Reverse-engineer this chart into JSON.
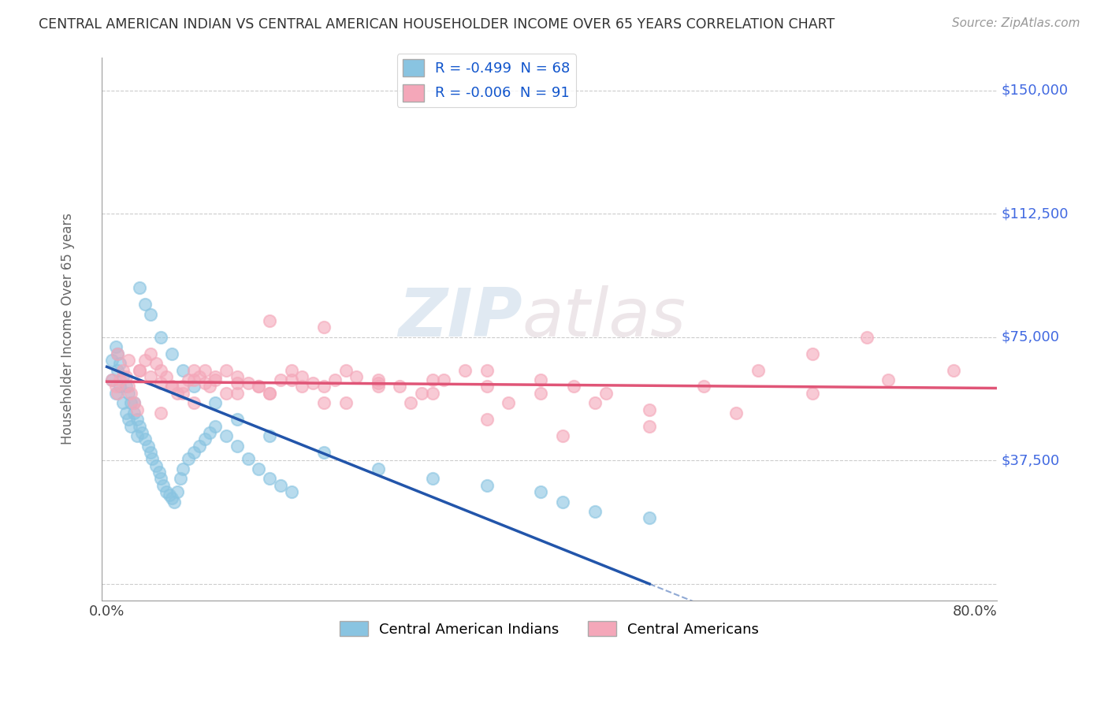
{
  "title": "CENTRAL AMERICAN INDIAN VS CENTRAL AMERICAN HOUSEHOLDER INCOME OVER 65 YEARS CORRELATION CHART",
  "source": "Source: ZipAtlas.com",
  "ylabel": "Householder Income Over 65 years",
  "xlabel": "",
  "yticks": [
    0,
    37500,
    75000,
    112500,
    150000
  ],
  "ytick_labels": [
    "",
    "$37,500",
    "$75,000",
    "$112,500",
    "$150,000"
  ],
  "xticks": [
    0.0,
    0.1,
    0.2,
    0.3,
    0.4,
    0.5,
    0.6,
    0.7,
    0.8
  ],
  "xtick_labels_show": [
    "0.0%",
    "80.0%"
  ],
  "xlim": [
    -0.005,
    0.82
  ],
  "ylim": [
    -5000,
    160000
  ],
  "watermark_zip": "ZIP",
  "watermark_atlas": "atlas",
  "legend_label1": "R = -0.499  N = 68",
  "legend_label2": "R = -0.006  N = 91",
  "legend_label3": "Central American Indians",
  "legend_label4": "Central Americans",
  "blue_color": "#89C4E1",
  "pink_color": "#F4A7B9",
  "blue_line_color": "#2255AA",
  "pink_line_color": "#E05577",
  "title_color": "#333333",
  "axis_label_color": "#666666",
  "tick_label_color": "#4169E1",
  "grid_color": "#CCCCCC",
  "background_color": "#FFFFFF",
  "blue_scatter_x": [
    0.005,
    0.008,
    0.01,
    0.012,
    0.015,
    0.018,
    0.02,
    0.022,
    0.025,
    0.028,
    0.005,
    0.008,
    0.01,
    0.012,
    0.015,
    0.018,
    0.02,
    0.022,
    0.025,
    0.028,
    0.03,
    0.032,
    0.035,
    0.038,
    0.04,
    0.042,
    0.045,
    0.048,
    0.05,
    0.052,
    0.055,
    0.058,
    0.06,
    0.062,
    0.065,
    0.068,
    0.07,
    0.075,
    0.08,
    0.085,
    0.09,
    0.095,
    0.1,
    0.11,
    0.12,
    0.13,
    0.14,
    0.15,
    0.16,
    0.17,
    0.03,
    0.035,
    0.04,
    0.05,
    0.06,
    0.07,
    0.08,
    0.1,
    0.12,
    0.15,
    0.2,
    0.25,
    0.3,
    0.35,
    0.4,
    0.42,
    0.45,
    0.5
  ],
  "blue_scatter_y": [
    62000,
    58000,
    65000,
    60000,
    55000,
    52000,
    50000,
    48000,
    55000,
    45000,
    68000,
    72000,
    70000,
    67000,
    63000,
    60000,
    58000,
    55000,
    52000,
    50000,
    48000,
    46000,
    44000,
    42000,
    40000,
    38000,
    36000,
    34000,
    32000,
    30000,
    28000,
    27000,
    26000,
    25000,
    28000,
    32000,
    35000,
    38000,
    40000,
    42000,
    44000,
    46000,
    48000,
    45000,
    42000,
    38000,
    35000,
    32000,
    30000,
    28000,
    90000,
    85000,
    82000,
    75000,
    70000,
    65000,
    60000,
    55000,
    50000,
    45000,
    40000,
    35000,
    32000,
    30000,
    28000,
    25000,
    22000,
    20000
  ],
  "pink_scatter_x": [
    0.005,
    0.008,
    0.01,
    0.012,
    0.015,
    0.018,
    0.02,
    0.022,
    0.025,
    0.028,
    0.03,
    0.035,
    0.04,
    0.045,
    0.05,
    0.055,
    0.06,
    0.065,
    0.07,
    0.075,
    0.08,
    0.085,
    0.09,
    0.095,
    0.1,
    0.11,
    0.12,
    0.13,
    0.14,
    0.15,
    0.16,
    0.17,
    0.18,
    0.19,
    0.2,
    0.21,
    0.22,
    0.23,
    0.25,
    0.27,
    0.29,
    0.31,
    0.33,
    0.35,
    0.37,
    0.4,
    0.43,
    0.46,
    0.01,
    0.02,
    0.03,
    0.04,
    0.05,
    0.06,
    0.07,
    0.08,
    0.09,
    0.1,
    0.12,
    0.15,
    0.2,
    0.25,
    0.3,
    0.35,
    0.4,
    0.45,
    0.5,
    0.55,
    0.6,
    0.65,
    0.7,
    0.12,
    0.18,
    0.25,
    0.3,
    0.15,
    0.2,
    0.28,
    0.35,
    0.42,
    0.5,
    0.58,
    0.65,
    0.72,
    0.78,
    0.05,
    0.08,
    0.11,
    0.14,
    0.17,
    0.22
  ],
  "pink_scatter_y": [
    62000,
    60000,
    58000,
    62000,
    65000,
    63000,
    60000,
    58000,
    55000,
    53000,
    65000,
    68000,
    70000,
    67000,
    65000,
    63000,
    60000,
    58000,
    60000,
    62000,
    65000,
    63000,
    61000,
    60000,
    62000,
    65000,
    63000,
    61000,
    60000,
    58000,
    62000,
    65000,
    63000,
    61000,
    60000,
    62000,
    65000,
    63000,
    61000,
    60000,
    58000,
    62000,
    65000,
    60000,
    55000,
    62000,
    60000,
    58000,
    70000,
    68000,
    65000,
    63000,
    61000,
    60000,
    58000,
    62000,
    65000,
    63000,
    61000,
    58000,
    55000,
    60000,
    62000,
    65000,
    58000,
    55000,
    53000,
    60000,
    65000,
    70000,
    75000,
    58000,
    60000,
    62000,
    58000,
    80000,
    78000,
    55000,
    50000,
    45000,
    48000,
    52000,
    58000,
    62000,
    65000,
    52000,
    55000,
    58000,
    60000,
    62000,
    55000
  ],
  "blue_line_x0": 0.0,
  "blue_line_y0": 66000,
  "blue_line_x1": 0.5,
  "blue_line_y1": 0,
  "pink_line_y": 60500
}
